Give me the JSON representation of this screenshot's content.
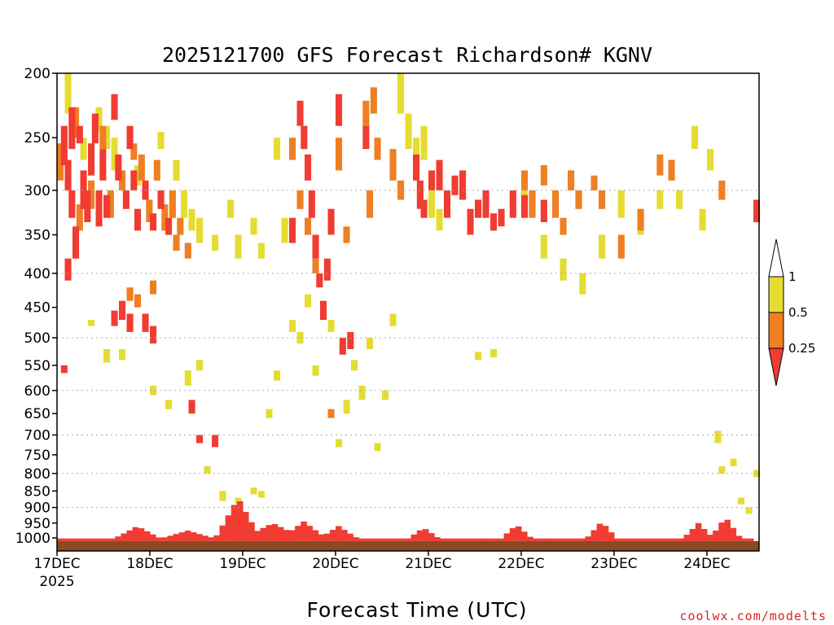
{
  "title": "2025121700 GFS Forecast Richardson# KGNV",
  "credit": "coolwx.com/modelts",
  "chart_data": {
    "type": "heatmap",
    "title": "2025121700 GFS Forecast Richardson# KGNV",
    "xlabel": "Forecast Time (UTC)",
    "ylabel": "",
    "x_unit": "forecast hour",
    "xlim": [
      0,
      180
    ],
    "ylim": [
      1050,
      200
    ],
    "y_scale": "log-pressure (hPa)",
    "x_ticks": [
      {
        "hour": 0,
        "label": "17DEC",
        "sublabel": "2025"
      },
      {
        "hour": 24,
        "label": "18DEC",
        "sublabel": ""
      },
      {
        "hour": 48,
        "label": "19DEC",
        "sublabel": ""
      },
      {
        "hour": 72,
        "label": "20DEC",
        "sublabel": ""
      },
      {
        "hour": 96,
        "label": "21DEC",
        "sublabel": ""
      },
      {
        "hour": 120,
        "label": "22DEC",
        "sublabel": ""
      },
      {
        "hour": 144,
        "label": "23DEC",
        "sublabel": ""
      },
      {
        "hour": 168,
        "label": "24DEC",
        "sublabel": ""
      }
    ],
    "y_ticks": [
      200,
      250,
      300,
      350,
      400,
      450,
      500,
      550,
      600,
      650,
      700,
      750,
      800,
      850,
      900,
      950,
      1000
    ],
    "gridlines_dotted": [
      300,
      400,
      500,
      600,
      700,
      800,
      900
    ],
    "surface_pressure": 1011,
    "colorbar": {
      "levels": [
        "0.25",
        "0.5",
        "1"
      ],
      "bins": [
        {
          "range": "< 0.25",
          "color": "#f03c32"
        },
        {
          "range": "0.25-0.5",
          "color": "#ee7f23"
        },
        {
          "range": "0.5-1",
          "color": "#e5dc32"
        },
        {
          "range": "> 1",
          "color": "#ffffff"
        }
      ]
    },
    "series": [
      {
        "color_class": "ri_lt_0.25",
        "cells": [
          [
            1,
            240,
            275
          ],
          [
            2,
            270,
            300
          ],
          [
            3,
            225,
            260
          ],
          [
            3,
            300,
            330
          ],
          [
            5,
            240,
            255
          ],
          [
            6,
            280,
            320
          ],
          [
            7,
            300,
            335
          ],
          [
            8,
            255,
            285
          ],
          [
            9,
            230,
            255
          ],
          [
            10,
            300,
            340
          ],
          [
            11,
            260,
            290
          ],
          [
            12,
            305,
            330
          ],
          [
            14,
            215,
            235
          ],
          [
            15,
            265,
            290
          ],
          [
            17,
            300,
            320
          ],
          [
            18,
            240,
            260
          ],
          [
            19,
            280,
            300
          ],
          [
            20,
            320,
            345
          ],
          [
            22,
            290,
            310
          ],
          [
            24,
            325,
            345
          ],
          [
            26,
            300,
            320
          ],
          [
            28,
            330,
            350
          ],
          [
            4,
            340,
            380
          ],
          [
            2,
            380,
            410
          ],
          [
            16,
            440,
            470
          ],
          [
            18,
            460,
            490
          ],
          [
            22,
            460,
            490
          ],
          [
            24,
            480,
            510
          ],
          [
            14,
            455,
            480
          ],
          [
            1,
            550,
            565
          ],
          [
            34,
            620,
            650
          ],
          [
            36,
            700,
            720
          ],
          [
            40,
            700,
            730
          ],
          [
            63,
            240,
            260
          ],
          [
            65,
            300,
            330
          ],
          [
            66,
            350,
            380
          ],
          [
            67,
            400,
            420
          ],
          [
            68,
            440,
            470
          ],
          [
            62,
            220,
            240
          ],
          [
            64,
            265,
            290
          ],
          [
            69,
            380,
            410
          ],
          [
            70,
            320,
            350
          ],
          [
            73,
            500,
            530
          ],
          [
            75,
            490,
            520
          ],
          [
            60,
            330,
            360
          ],
          [
            79,
            240,
            260
          ],
          [
            72,
            215,
            240
          ],
          [
            92,
            265,
            290
          ],
          [
            93,
            290,
            320
          ],
          [
            94,
            310,
            330
          ],
          [
            96,
            280,
            300
          ],
          [
            98,
            270,
            300
          ],
          [
            100,
            300,
            330
          ],
          [
            102,
            285,
            305
          ],
          [
            104,
            280,
            310
          ],
          [
            106,
            320,
            350
          ],
          [
            108,
            310,
            330
          ],
          [
            110,
            300,
            330
          ],
          [
            112,
            325,
            345
          ],
          [
            114,
            320,
            340
          ],
          [
            117,
            300,
            330
          ],
          [
            120,
            305,
            330
          ],
          [
            125,
            310,
            335
          ],
          [
            180,
            310,
            335
          ]
        ]
      },
      {
        "color_class": "ri_0.25_0.5",
        "cells": [
          [
            0,
            255,
            290
          ],
          [
            4,
            225,
            250
          ],
          [
            5,
            315,
            345
          ],
          [
            8,
            290,
            320
          ],
          [
            11,
            240,
            260
          ],
          [
            13,
            300,
            330
          ],
          [
            16,
            280,
            300
          ],
          [
            19,
            255,
            270
          ],
          [
            21,
            265,
            290
          ],
          [
            23,
            310,
            335
          ],
          [
            25,
            270,
            290
          ],
          [
            27,
            315,
            345
          ],
          [
            29,
            300,
            330
          ],
          [
            31,
            330,
            350
          ],
          [
            33,
            360,
            380
          ],
          [
            18,
            420,
            440
          ],
          [
            24,
            410,
            430
          ],
          [
            30,
            350,
            370
          ],
          [
            20,
            430,
            450
          ],
          [
            60,
            250,
            270
          ],
          [
            62,
            300,
            320
          ],
          [
            64,
            330,
            350
          ],
          [
            66,
            380,
            400
          ],
          [
            72,
            250,
            280
          ],
          [
            74,
            340,
            360
          ],
          [
            70,
            640,
            660
          ],
          [
            79,
            220,
            240
          ],
          [
            80,
            300,
            330
          ],
          [
            81,
            210,
            230
          ],
          [
            82,
            250,
            270
          ],
          [
            86,
            260,
            290
          ],
          [
            88,
            290,
            310
          ],
          [
            120,
            280,
            300
          ],
          [
            122,
            300,
            330
          ],
          [
            125,
            275,
            295
          ],
          [
            128,
            300,
            330
          ],
          [
            130,
            330,
            350
          ],
          [
            132,
            280,
            300
          ],
          [
            134,
            300,
            320
          ],
          [
            138,
            285,
            300
          ],
          [
            140,
            300,
            320
          ],
          [
            145,
            350,
            380
          ],
          [
            150,
            320,
            345
          ],
          [
            155,
            265,
            285
          ],
          [
            158,
            270,
            290
          ],
          [
            171,
            290,
            310
          ]
        ]
      },
      {
        "color_class": "ri_0.5_1",
        "cells": [
          [
            2,
            200,
            230
          ],
          [
            6,
            250,
            270
          ],
          [
            10,
            225,
            245
          ],
          [
            12,
            240,
            260
          ],
          [
            14,
            250,
            280
          ],
          [
            20,
            275,
            295
          ],
          [
            26,
            245,
            260
          ],
          [
            30,
            270,
            290
          ],
          [
            32,
            300,
            330
          ],
          [
            34,
            320,
            345
          ],
          [
            36,
            330,
            360
          ],
          [
            40,
            350,
            370
          ],
          [
            44,
            310,
            330
          ],
          [
            46,
            350,
            380
          ],
          [
            50,
            330,
            350
          ],
          [
            52,
            360,
            380
          ],
          [
            56,
            250,
            270
          ],
          [
            58,
            330,
            360
          ],
          [
            8,
            470,
            480
          ],
          [
            12,
            520,
            545
          ],
          [
            16,
            520,
            540
          ],
          [
            24,
            590,
            610
          ],
          [
            28,
            620,
            640
          ],
          [
            33,
            560,
            590
          ],
          [
            36,
            540,
            560
          ],
          [
            38,
            780,
            800
          ],
          [
            42,
            850,
            880
          ],
          [
            46,
            870,
            890
          ],
          [
            50,
            840,
            860
          ],
          [
            52,
            850,
            870
          ],
          [
            54,
            640,
            660
          ],
          [
            56,
            560,
            580
          ],
          [
            60,
            470,
            490
          ],
          [
            62,
            490,
            510
          ],
          [
            64,
            430,
            450
          ],
          [
            66,
            550,
            570
          ],
          [
            70,
            470,
            490
          ],
          [
            72,
            710,
            730
          ],
          [
            74,
            620,
            650
          ],
          [
            76,
            540,
            560
          ],
          [
            78,
            590,
            620
          ],
          [
            80,
            500,
            520
          ],
          [
            82,
            720,
            740
          ],
          [
            84,
            600,
            620
          ],
          [
            86,
            460,
            480
          ],
          [
            88,
            200,
            230
          ],
          [
            90,
            230,
            260
          ],
          [
            92,
            250,
            270
          ],
          [
            94,
            240,
            270
          ],
          [
            96,
            300,
            330
          ],
          [
            98,
            320,
            345
          ],
          [
            108,
            525,
            540
          ],
          [
            112,
            520,
            535
          ],
          [
            120,
            300,
            330
          ],
          [
            125,
            350,
            380
          ],
          [
            130,
            380,
            410
          ],
          [
            135,
            400,
            430
          ],
          [
            140,
            350,
            380
          ],
          [
            145,
            300,
            330
          ],
          [
            150,
            320,
            350
          ],
          [
            155,
            300,
            320
          ],
          [
            160,
            300,
            320
          ],
          [
            164,
            240,
            260
          ],
          [
            166,
            320,
            345
          ],
          [
            168,
            260,
            280
          ],
          [
            170,
            690,
            720
          ],
          [
            171,
            780,
            800
          ],
          [
            174,
            760,
            780
          ],
          [
            176,
            870,
            890
          ],
          [
            178,
            900,
            920
          ],
          [
            180,
            790,
            810
          ]
        ]
      }
    ]
  }
}
